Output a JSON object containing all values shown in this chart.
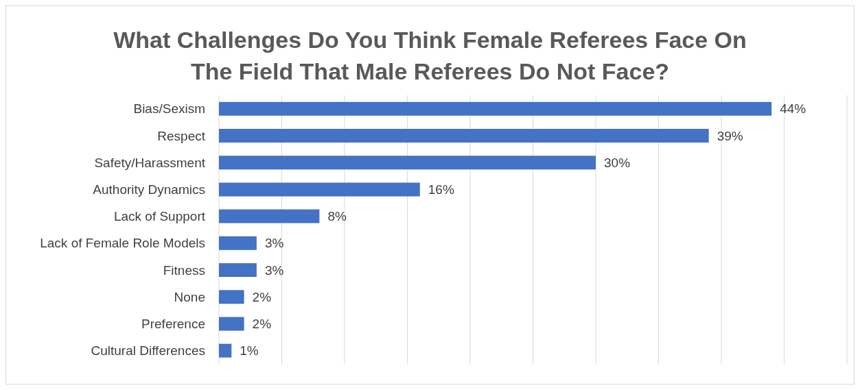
{
  "chart_data": {
    "type": "bar",
    "orientation": "horizontal",
    "title": "What Challenges Do You Think Female Referees Face On The Field That Male Referees Do Not Face?",
    "categories": [
      "Bias/Sexism",
      "Respect",
      "Safety/Harassment",
      "Authority Dynamics",
      "Lack of Support",
      "Lack of Female Role Models",
      "Fitness",
      "None",
      "Preference",
      "Cultural Differences"
    ],
    "values": [
      44,
      39,
      30,
      16,
      8,
      3,
      3,
      2,
      2,
      1
    ],
    "value_labels": [
      "44%",
      "39%",
      "30%",
      "16%",
      "8%",
      "3%",
      "3%",
      "2%",
      "2%",
      "1%"
    ],
    "color": "#4472c4",
    "xlim": [
      0,
      50
    ],
    "grid": "x",
    "tick_labels": "y"
  }
}
